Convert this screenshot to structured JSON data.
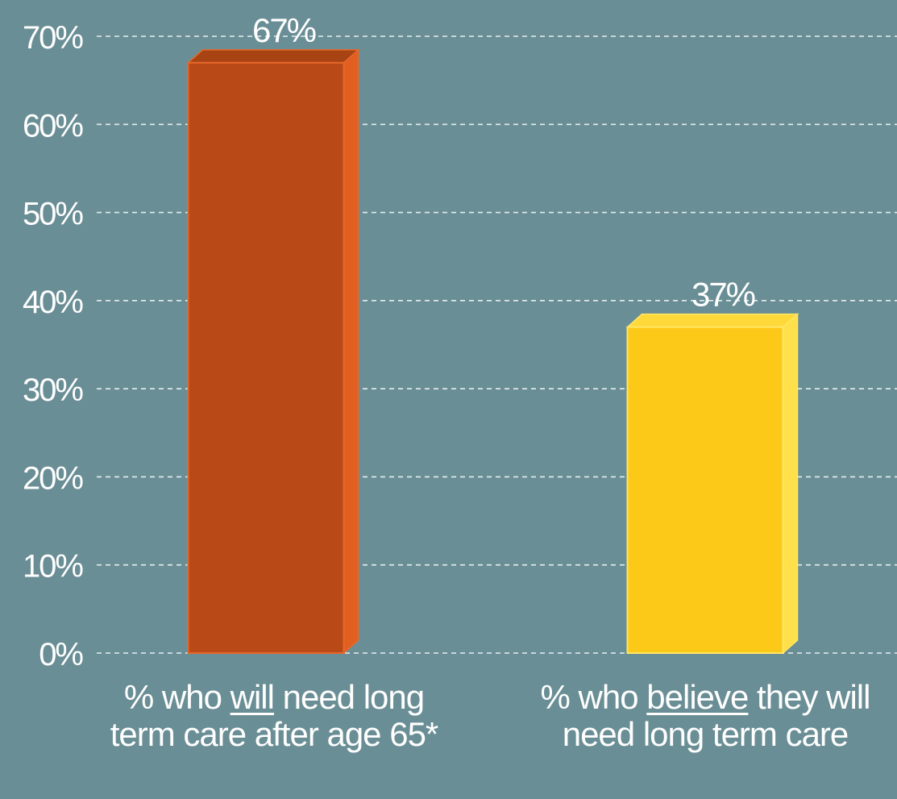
{
  "chart_data": {
    "type": "bar",
    "categories": [
      {
        "pre": "% who ",
        "emph": "will",
        "post": " need long term care after age 65*"
      },
      {
        "pre": "% who ",
        "emph": "believe",
        "post": " they will need long term care"
      }
    ],
    "values": [
      67,
      37
    ],
    "data_labels": [
      "67%",
      "37%"
    ],
    "bar_colors": [
      {
        "front": "#b94a18",
        "side": "#e25f22",
        "top": "#a84314",
        "edge": "#e8682a"
      },
      {
        "front": "#fdc918",
        "side": "#ffe04a",
        "top": "#ffd83a",
        "edge": "#ffe666"
      }
    ],
    "yticks": [
      "0%",
      "10%",
      "20%",
      "30%",
      "40%",
      "50%",
      "60%",
      "70%"
    ],
    "ylim": [
      0,
      70
    ],
    "grid": true
  }
}
